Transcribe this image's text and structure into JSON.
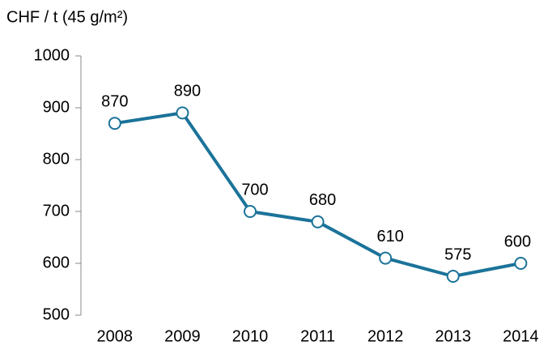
{
  "chart_data": {
    "type": "line",
    "y_label": "CHF / t (45 g/m²)",
    "categories": [
      "2008",
      "2009",
      "2010",
      "2011",
      "2012",
      "2013",
      "2014"
    ],
    "values": [
      870,
      890,
      700,
      680,
      610,
      575,
      600
    ],
    "color": "#1b7399",
    "ylim": [
      500,
      1000
    ],
    "yticks": [
      500,
      600,
      700,
      800,
      900,
      1000
    ],
    "grid": false
  }
}
